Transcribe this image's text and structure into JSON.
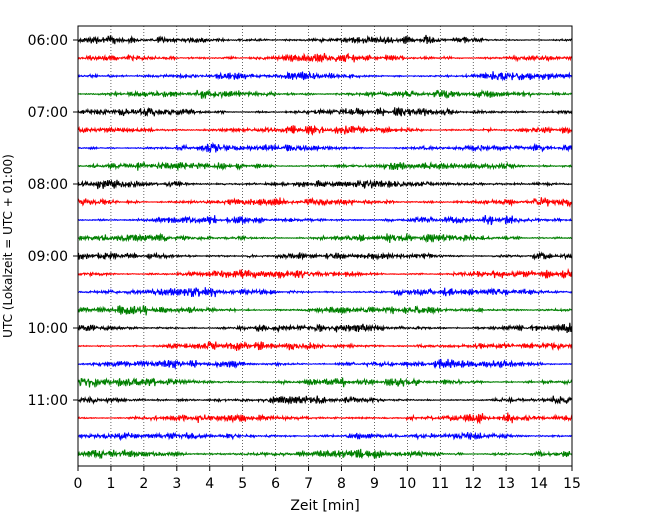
{
  "chart_data": {
    "type": "line",
    "title": "",
    "xlabel": "Zeit  [min]",
    "ylabel": "UTC (Lokalzeit = UTC + 01:00)",
    "xlim": [
      0,
      15
    ],
    "x_ticks": [
      0,
      1,
      2,
      3,
      4,
      5,
      6,
      7,
      8,
      9,
      10,
      11,
      12,
      13,
      14,
      15
    ],
    "y_tick_labels": [
      "06:00",
      "07:00",
      "08:00",
      "09:00",
      "10:00",
      "11:00"
    ],
    "grid": "vertical-dotted",
    "traces_per_hour": 4,
    "trace_interval_min": 15,
    "trace_colors": [
      "#000000",
      "#ff0000",
      "#0000ff",
      "#008000"
    ],
    "series": [
      {
        "start": "06:00",
        "color": "#000000"
      },
      {
        "start": "06:15",
        "color": "#ff0000"
      },
      {
        "start": "06:30",
        "color": "#0000ff"
      },
      {
        "start": "06:45",
        "color": "#008000"
      },
      {
        "start": "07:00",
        "color": "#000000"
      },
      {
        "start": "07:15",
        "color": "#ff0000"
      },
      {
        "start": "07:30",
        "color": "#0000ff"
      },
      {
        "start": "07:45",
        "color": "#008000"
      },
      {
        "start": "08:00",
        "color": "#000000"
      },
      {
        "start": "08:15",
        "color": "#ff0000"
      },
      {
        "start": "08:30",
        "color": "#0000ff"
      },
      {
        "start": "08:45",
        "color": "#008000"
      },
      {
        "start": "09:00",
        "color": "#000000"
      },
      {
        "start": "09:15",
        "color": "#ff0000"
      },
      {
        "start": "09:30",
        "color": "#0000ff"
      },
      {
        "start": "09:45",
        "color": "#008000"
      },
      {
        "start": "10:00",
        "color": "#000000"
      },
      {
        "start": "10:15",
        "color": "#ff0000"
      },
      {
        "start": "10:30",
        "color": "#0000ff"
      },
      {
        "start": "10:45",
        "color": "#008000"
      },
      {
        "start": "11:00",
        "color": "#000000"
      },
      {
        "start": "11:15",
        "color": "#ff0000"
      },
      {
        "start": "11:30",
        "color": "#0000ff"
      },
      {
        "start": "11:45",
        "color": "#008000"
      }
    ]
  }
}
